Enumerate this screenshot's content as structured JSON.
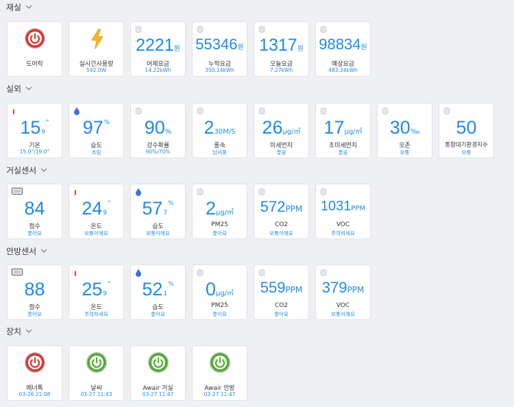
{
  "sections": {
    "living": {
      "title": "재실"
    },
    "outdoor": {
      "title": "실외"
    },
    "lr_sensor": {
      "title": "거실센서"
    },
    "br_sensor": {
      "title": "안방센서"
    },
    "devices": {
      "title": "장치"
    }
  },
  "living": {
    "door": {
      "label": "도어락",
      "state_color": "#d9342b"
    },
    "power": {
      "label": "실시간사용량",
      "status": "592.0W"
    },
    "yesterday": {
      "value": "2221",
      "unit": "원",
      "label": "어제요금",
      "status": "14.22kWh"
    },
    "cumulative": {
      "value": "55346",
      "unit": "원",
      "label": "누적요금",
      "status": "350.14kWh"
    },
    "today": {
      "value": "1317",
      "unit": "원",
      "label": "오늘요금",
      "status": "7.27kWh"
    },
    "forecast": {
      "value": "98834",
      "unit": "원",
      "label": "예상요금",
      "status": "483.34kWh"
    }
  },
  "outdoor": {
    "temp": {
      "value": "15",
      "sub": "9",
      "sup": "°",
      "label": "기온",
      "status": "15.0°/19.0°"
    },
    "humidity": {
      "value": "97",
      "sup": "%",
      "label": "습도",
      "status": "흐림"
    },
    "rain": {
      "value": "90",
      "unit": "%",
      "label": "강수확률",
      "status": "90%/70%"
    },
    "wind": {
      "value": "2",
      "unit": "30M/S",
      "label": "풍속",
      "status": "남서풍"
    },
    "pm10": {
      "value": "26",
      "unit": "μg/㎥",
      "label": "미세먼지",
      "status": "좋음"
    },
    "pm25": {
      "value": "17",
      "unit": "μg/㎥",
      "label": "초미세먼지",
      "status": "좋음"
    },
    "ozone": {
      "value": "30",
      "unit": "‰",
      "label": "오존",
      "status": "보통"
    },
    "aqi": {
      "value": "50",
      "label": "통합대기환경지수",
      "status": "보통"
    }
  },
  "lr_sensor": {
    "score": {
      "value": "84",
      "label": "점수",
      "status": "좋아요"
    },
    "temp": {
      "value": "24",
      "sub": "9",
      "sup": "°",
      "label": "온도",
      "status": "보통이에요"
    },
    "humidity": {
      "value": "57",
      "sub": "7",
      "sup": "%",
      "label": "습도",
      "status": "보통이에요"
    },
    "pm25": {
      "value": "2",
      "unit": "μg/㎥",
      "label": "PM25",
      "status": "좋아요"
    },
    "co2": {
      "value": "572",
      "unit": "PPM",
      "label": "CO2",
      "status": "보통이에요"
    },
    "voc": {
      "value": "1031",
      "unit": "PPM",
      "label": "VOC",
      "status": "주의하세요"
    }
  },
  "br_sensor": {
    "score": {
      "value": "88",
      "label": "점수",
      "status": "좋아요"
    },
    "temp": {
      "value": "25",
      "sub": "9",
      "sup": "°",
      "label": "온도",
      "status": "주의하세요"
    },
    "humidity": {
      "value": "52",
      "sub": "1",
      "sup": "%",
      "label": "습도",
      "status": "좋아요"
    },
    "pm25": {
      "value": "0",
      "unit": "μg/㎥",
      "label": "PM25",
      "status": "좋아요"
    },
    "co2": {
      "value": "559",
      "unit": "PPM",
      "label": "CO2",
      "status": "좋아요"
    },
    "voc": {
      "value": "379",
      "unit": "PPM",
      "label": "VOC",
      "status": "보통이에요"
    }
  },
  "devices": {
    "energy": {
      "label": "에너톡",
      "status": "03-26 21:08",
      "state_color": "#d9342b"
    },
    "weather": {
      "label": "날씨",
      "status": "03-27 11:43",
      "state_color": "#4caf2a"
    },
    "awair_lr": {
      "label": "Awair 거실",
      "status": "03-27 11:47",
      "state_color": "#4caf2a"
    },
    "awair_br": {
      "label": "Awair 안방",
      "status": "03-27 11:47",
      "state_color": "#4caf2a"
    }
  },
  "icons": {
    "corner": "cube-icon",
    "thermo": "thermometer-icon",
    "drop": "water-drop-icon",
    "sensor": "awair-sensor-icon",
    "bolt": "lightning-bolt-icon",
    "power": "power-button-icon"
  }
}
